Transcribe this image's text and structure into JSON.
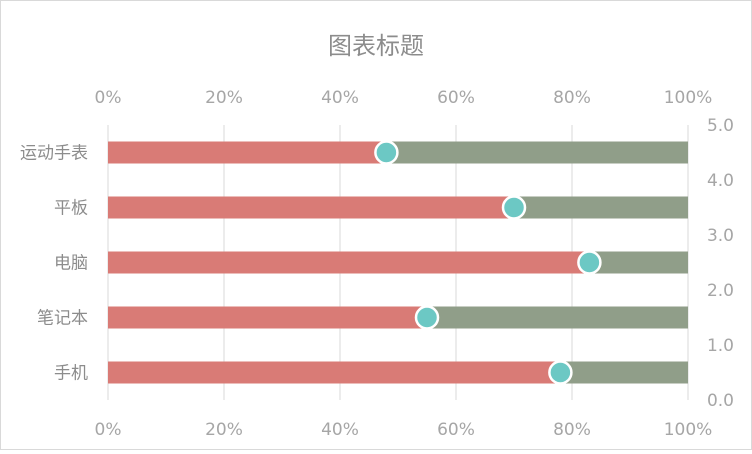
{
  "chart_data": {
    "type": "bar",
    "orientation": "horizontal",
    "stacked": true,
    "title": "图表标题",
    "categories": [
      "运动手表",
      "平板",
      "电脑",
      "笔记本",
      "手机"
    ],
    "series": [
      {
        "values": [
          48,
          70,
          83,
          55,
          78
        ],
        "color": "#d97b76"
      },
      {
        "values": [
          52,
          30,
          17,
          45,
          22
        ],
        "color": "#909e89"
      }
    ],
    "markers": {
      "values": [
        48,
        70,
        83,
        55,
        78
      ],
      "color": "#6cc8c4"
    },
    "x_axis": {
      "ticks": [
        "0%",
        "20%",
        "40%",
        "60%",
        "80%",
        "100%"
      ],
      "range": [
        0,
        100
      ],
      "shown_top": true,
      "shown_bottom": true
    },
    "secondary_y_axis": {
      "ticks": [
        "0.0",
        "1.0",
        "2.0",
        "3.0",
        "4.0",
        "5.0"
      ],
      "range": [
        0,
        5
      ]
    },
    "grid": true,
    "legend": "none"
  }
}
